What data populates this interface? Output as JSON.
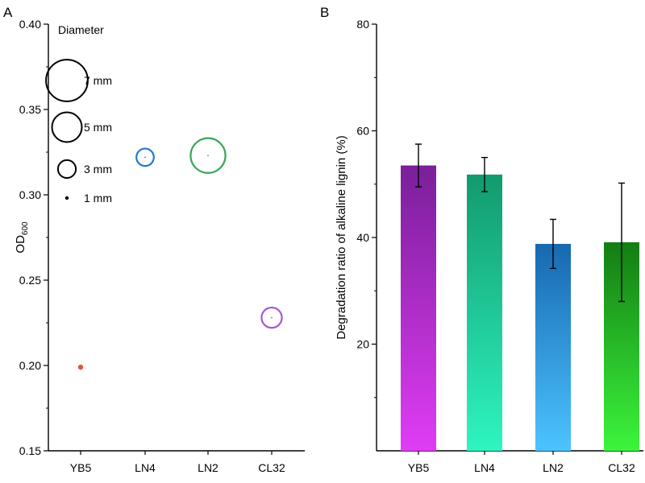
{
  "panels": {
    "a": "A",
    "b": "B"
  },
  "chart_data": [
    {
      "type": "scatter",
      "panel": "A",
      "ylabel": "OD",
      "ylabel_sub": "600",
      "ylim": [
        0.15,
        0.4
      ],
      "yticks": [
        "0.15",
        "0.20",
        "0.25",
        "0.30",
        "0.35",
        "0.40"
      ],
      "categories": [
        "YB5",
        "LN4",
        "LN2",
        "CL32"
      ],
      "points": [
        {
          "x": "YB5",
          "y": 0.199,
          "diameter_mm": 1,
          "color": "#e0553a",
          "filled": true
        },
        {
          "x": "LN4",
          "y": 0.322,
          "diameter_mm": 3,
          "color": "#1f77d0",
          "filled": false
        },
        {
          "x": "LN2",
          "y": 0.323,
          "diameter_mm": 6,
          "color": "#3aa55a",
          "filled": false
        },
        {
          "x": "CL32",
          "y": 0.228,
          "diameter_mm": 3.5,
          "color": "#a855d8",
          "filled": false
        }
      ],
      "legend": {
        "title": "Diameter",
        "entries": [
          {
            "label": "7 mm",
            "diameter_mm": 7
          },
          {
            "label": "5 mm",
            "diameter_mm": 5
          },
          {
            "label": "3 mm",
            "diameter_mm": 3
          },
          {
            "label": "1 mm",
            "diameter_mm": 1
          }
        ]
      },
      "grid": false
    },
    {
      "type": "bar",
      "panel": "B",
      "ylabel": "Degradation ratio of alkaline lignin (%)",
      "ylim": [
        0,
        80
      ],
      "yticks": [
        "20",
        "40",
        "60",
        "80"
      ],
      "categories": [
        "YB5",
        "LN4",
        "LN2",
        "CL32"
      ],
      "values": [
        53.5,
        51.8,
        38.8,
        39.1
      ],
      "errors": [
        4.0,
        3.2,
        4.6,
        11.1
      ],
      "colors": [
        {
          "top": "#7a1f9a",
          "bottom": "#e03cf5"
        },
        {
          "top": "#129a6e",
          "bottom": "#2ef5c0"
        },
        {
          "top": "#1768b0",
          "bottom": "#4cc4ff"
        },
        {
          "top": "#137d13",
          "bottom": "#3cf53c"
        }
      ],
      "grid": false
    }
  ]
}
